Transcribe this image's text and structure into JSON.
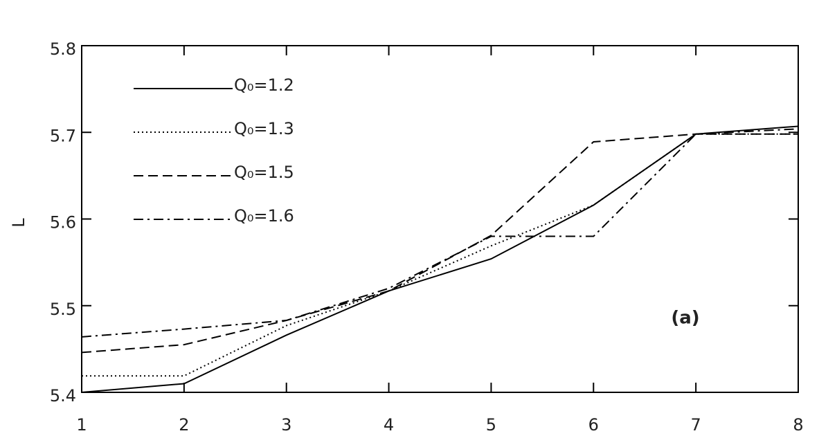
{
  "chart_data": {
    "type": "line",
    "ylabel": "L",
    "annotation": "(a)",
    "x": [
      1,
      2,
      3,
      4,
      5,
      6,
      7,
      8
    ],
    "series": [
      {
        "name": "Q₀=1.2",
        "color": "#000000",
        "style": "solid",
        "values": [
          5.4,
          5.41,
          5.466,
          5.517,
          5.554,
          5.616,
          5.698,
          5.707
        ]
      },
      {
        "name": "Q₀=1.3",
        "color": "#000000",
        "style": "dotted",
        "values": [
          5.419,
          5.419,
          5.477,
          5.517,
          5.569,
          5.616,
          5.698,
          5.698
        ]
      },
      {
        "name": "Q₀=1.5",
        "color": "#000000",
        "style": "dashed",
        "values": [
          5.446,
          5.455,
          5.483,
          5.517,
          5.581,
          5.689,
          5.698,
          5.698
        ]
      },
      {
        "name": "Q₀=1.6",
        "color": "#000000",
        "style": "dashdot",
        "values": [
          5.464,
          5.473,
          5.483,
          5.52,
          5.58,
          5.58,
          5.698,
          5.704
        ]
      }
    ],
    "xlim": [
      1,
      8
    ],
    "xticks": [
      1,
      2,
      3,
      4,
      5,
      6,
      7,
      8
    ],
    "ylim": [
      5.4,
      5.8
    ],
    "yticks": [
      5.4,
      5.5,
      5.6,
      5.7,
      5.8
    ],
    "legend": "upper left"
  }
}
